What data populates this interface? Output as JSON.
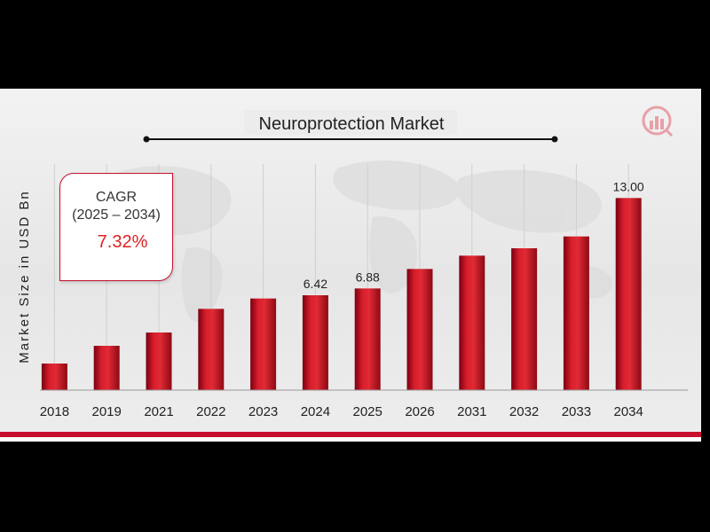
{
  "chart_data": {
    "type": "bar",
    "title": "Neuroprotection Market",
    "ylabel": "Market Size in USD Bn",
    "xlabel": "",
    "categories": [
      "2018",
      "2019",
      "2021",
      "2022",
      "2023",
      "2024",
      "2025",
      "2026",
      "2031",
      "2032",
      "2033",
      "2034"
    ],
    "values": [
      1.8,
      3.0,
      3.9,
      5.5,
      6.2,
      6.42,
      6.88,
      8.2,
      9.1,
      9.6,
      10.4,
      13.0
    ],
    "data_labels": [
      "",
      "",
      "",
      "",
      "",
      "6.42",
      "6.88",
      "",
      "",
      "",
      "",
      "13.00"
    ],
    "ylim": [
      0,
      15
    ],
    "grid": true,
    "bar_color": "#c8102e"
  },
  "cagr": {
    "label": "CAGR",
    "period": "(2025 – 2034)",
    "value": "7.32%"
  },
  "colors": {
    "accent": "#c8102e",
    "text": "#333333"
  }
}
